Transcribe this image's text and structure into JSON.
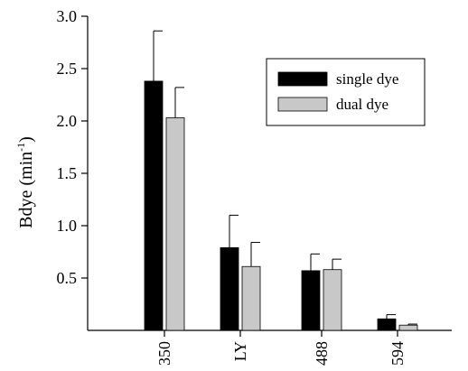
{
  "chart_data": {
    "type": "bar",
    "title": "",
    "xlabel": "",
    "ylabel": "Bdye (min",
    "ylabel_sup": "-1",
    "ylabel_close": ")",
    "ylim": [
      0,
      3.0
    ],
    "yticks": [
      0.5,
      1.0,
      1.5,
      2.0,
      2.5,
      3.0
    ],
    "ytick_labels": [
      "0.5",
      "1.0",
      "1.5",
      "2.0",
      "2.5",
      "3.0"
    ],
    "categories": [
      "350",
      "LY",
      "488",
      "594"
    ],
    "series": [
      {
        "name": "single dye",
        "color": "#000000",
        "values": [
          2.38,
          0.79,
          0.57,
          0.11
        ],
        "errors": [
          0.48,
          0.31,
          0.16,
          0.04
        ]
      },
      {
        "name": "dual dye",
        "color": "#c8c8c8",
        "values": [
          2.03,
          0.61,
          0.58,
          0.05
        ],
        "errors": [
          0.29,
          0.23,
          0.1,
          0.01
        ]
      }
    ],
    "legend_position": "top-right",
    "grid": false
  }
}
